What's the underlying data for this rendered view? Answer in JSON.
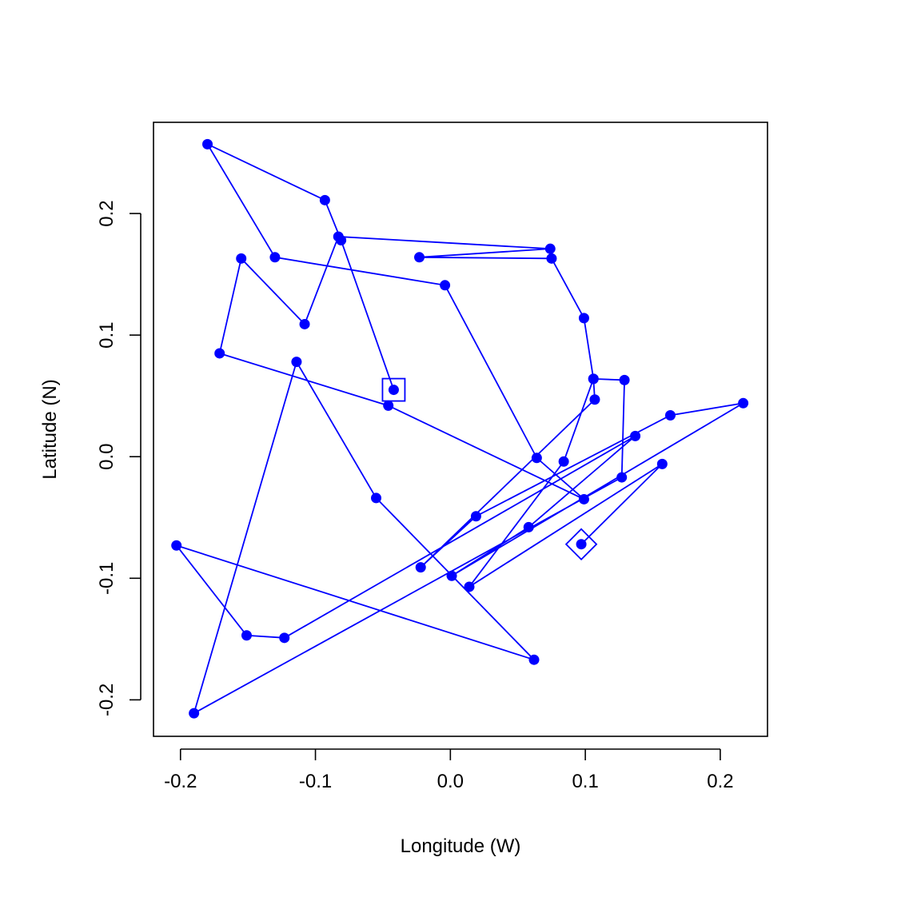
{
  "chart_data": {
    "type": "line",
    "title": "",
    "xlabel": "Longitude (W)",
    "ylabel": "Latitude (N)",
    "xlim": [
      -0.22,
      0.235
    ],
    "ylim": [
      -0.23,
      0.275
    ],
    "x_ticks": [
      -0.2,
      -0.1,
      0.0,
      0.1,
      0.2
    ],
    "y_ticks": [
      -0.2,
      -0.1,
      0.0,
      0.1,
      0.2
    ],
    "x_tick_labels": [
      "-0.2",
      "-0.1",
      "0.0",
      "0.1",
      "0.2"
    ],
    "y_tick_labels": [
      "-0.2",
      "-0.1",
      "0.0",
      "0.1",
      "0.2"
    ],
    "grid": false,
    "series": [
      {
        "color": "#0000FF",
        "marker": "filled-circle",
        "x": [
          -0.042,
          -0.081,
          -0.093,
          -0.18,
          -0.13,
          -0.004,
          0.064,
          0.099,
          -0.046,
          -0.171,
          -0.155,
          -0.108,
          -0.083,
          0.074,
          -0.023,
          0.075,
          0.099,
          0.106,
          0.107,
          -0.022,
          0.019,
          0.163,
          0.217,
          0.001,
          0.058,
          0.137,
          -0.123,
          -0.151,
          -0.203,
          0.062,
          -0.055,
          -0.114,
          -0.19,
          0.127,
          0.129,
          0.106,
          0.084,
          0.014,
          0.157,
          0.097
        ],
        "y": [
          0.055,
          0.178,
          0.211,
          0.257,
          0.164,
          0.141,
          -0.001,
          -0.035,
          0.042,
          0.085,
          0.163,
          0.109,
          0.181,
          0.171,
          0.164,
          0.163,
          0.114,
          0.064,
          0.047,
          -0.091,
          -0.049,
          0.034,
          0.044,
          -0.098,
          -0.058,
          0.017,
          -0.149,
          -0.147,
          -0.073,
          -0.167,
          -0.034,
          0.078,
          -0.211,
          -0.017,
          0.063,
          0.064,
          -0.004,
          -0.107,
          -0.006,
          -0.072
        ]
      }
    ],
    "start_marker": "square",
    "end_marker": "diamond"
  }
}
